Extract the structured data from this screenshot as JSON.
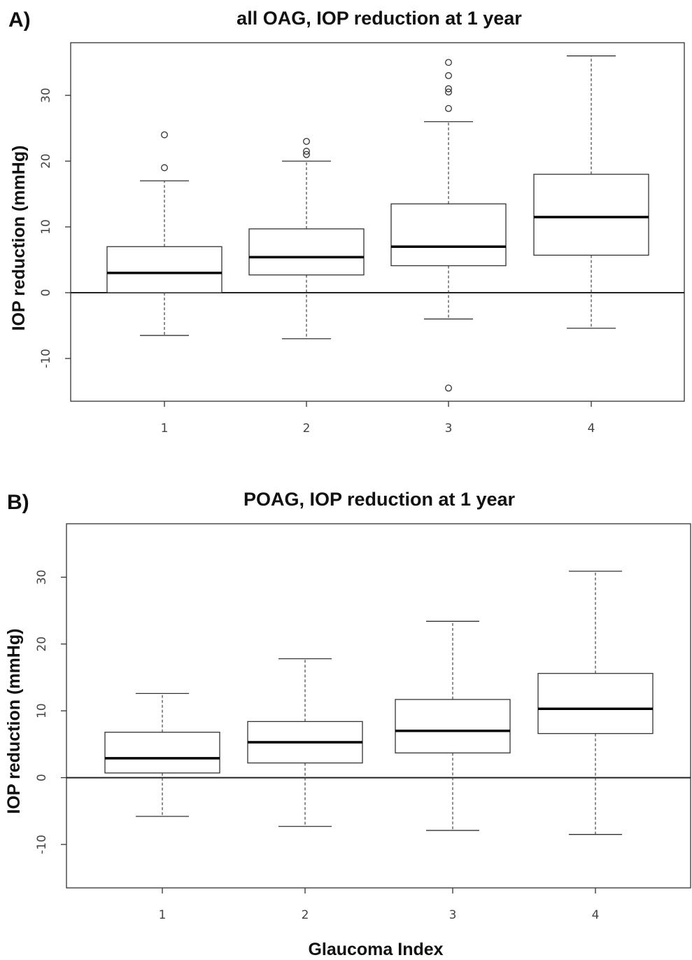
{
  "chart_data": [
    {
      "type": "box",
      "panel_label": "A)",
      "title": "all OAG, IOP reduction at 1 year",
      "ylabel": "IOP reduction (mmHg)",
      "xlabel": "",
      "ylim": [
        -16.5,
        38
      ],
      "yticks": [
        -10,
        0,
        10,
        20,
        30
      ],
      "categories": [
        "1",
        "2",
        "3",
        "4"
      ],
      "reference_line_y": 0,
      "boxes": [
        {
          "category": "1",
          "whisker_low": -6.5,
          "q1": 0,
          "median": 3,
          "q3": 7,
          "whisker_high": 17,
          "outliers": [
            19,
            24
          ]
        },
        {
          "category": "2",
          "whisker_low": -7,
          "q1": 2.7,
          "median": 5.4,
          "q3": 9.7,
          "whisker_high": 20,
          "outliers": [
            21,
            21.5,
            23
          ]
        },
        {
          "category": "3",
          "whisker_low": -4,
          "q1": 4.1,
          "median": 7,
          "q3": 13.5,
          "whisker_high": 26,
          "outliers": [
            -14.5,
            28,
            30.5,
            31,
            33,
            35
          ]
        },
        {
          "category": "4",
          "whisker_low": -5.4,
          "q1": 5.7,
          "median": 11.5,
          "q3": 18,
          "whisker_high": 36,
          "outliers": []
        }
      ]
    },
    {
      "type": "box",
      "panel_label": "B)",
      "title": "POAG, IOP reduction at 1 year",
      "ylabel": "IOP reduction (mmHg)",
      "xlabel": "Glaucoma Index",
      "ylim": [
        -16.5,
        38
      ],
      "yticks": [
        -10,
        0,
        10,
        20,
        30
      ],
      "categories": [
        "1",
        "2",
        "3",
        "4"
      ],
      "reference_line_y": 0,
      "boxes": [
        {
          "category": "1",
          "whisker_low": -5.8,
          "q1": 0.7,
          "median": 2.9,
          "q3": 6.8,
          "whisker_high": 12.6,
          "outliers": []
        },
        {
          "category": "2",
          "whisker_low": -7.3,
          "q1": 2.2,
          "median": 5.3,
          "q3": 8.4,
          "whisker_high": 17.8,
          "outliers": []
        },
        {
          "category": "3",
          "whisker_low": -7.9,
          "q1": 3.7,
          "median": 7,
          "q3": 11.7,
          "whisker_high": 23.4,
          "outliers": []
        },
        {
          "category": "4",
          "whisker_low": -8.5,
          "q1": 6.6,
          "median": 10.3,
          "q3": 15.6,
          "whisker_high": 30.9,
          "outliers": []
        }
      ]
    }
  ]
}
